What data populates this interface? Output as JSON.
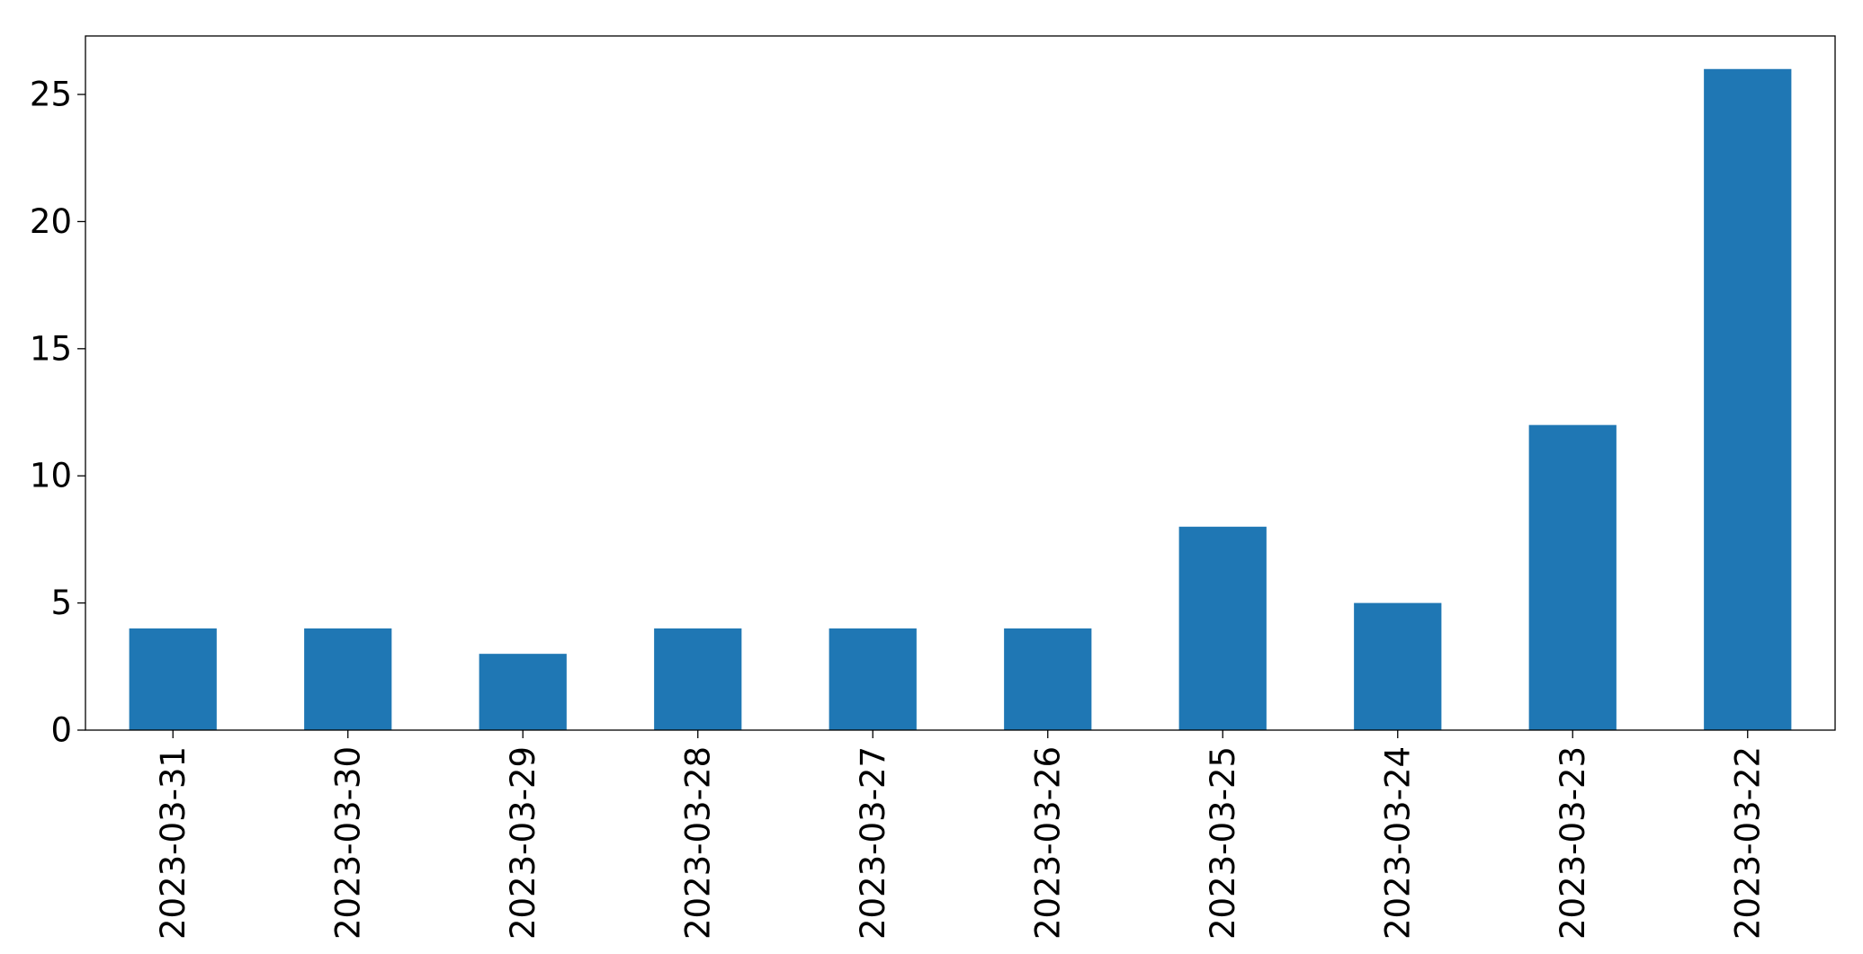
{
  "chart_data": {
    "type": "bar",
    "title": "",
    "xlabel": "",
    "ylabel": "",
    "categories": [
      "2023-03-31",
      "2023-03-30",
      "2023-03-29",
      "2023-03-28",
      "2023-03-27",
      "2023-03-26",
      "2023-03-25",
      "2023-03-24",
      "2023-03-23",
      "2023-03-22"
    ],
    "values": [
      4,
      4,
      3,
      4,
      4,
      4,
      8,
      5,
      12,
      26
    ],
    "ylim": [
      0,
      27.3
    ],
    "yticks": [
      "0",
      "5",
      "10",
      "15",
      "20",
      "25"
    ],
    "grid": false,
    "legend": "none",
    "bar_color": "#1f77b4"
  }
}
